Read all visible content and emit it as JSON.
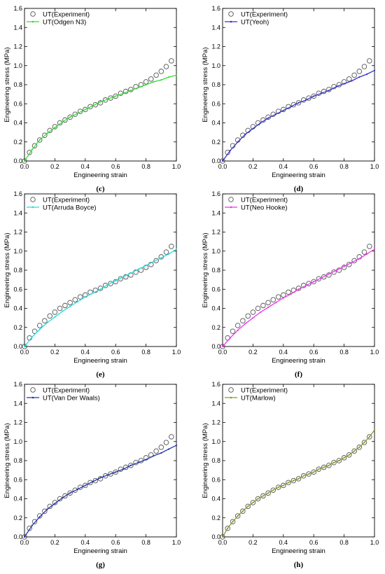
{
  "chart_data": [
    {
      "panel": "(c)",
      "type": "scatter",
      "xlabel": "Engineering strain",
      "ylabel": "Engineering stress (MPa)",
      "xlim": [
        0,
        1.0
      ],
      "ylim": [
        0,
        1.6
      ],
      "xticks": [
        "0.0",
        "0.2",
        "0.4",
        "0.6",
        "0.8",
        "1.0"
      ],
      "yticks": [
        "0.0",
        "0.2",
        "0.4",
        "0.6",
        "0.8",
        "1.0",
        "1.2",
        "1.4",
        "1.6"
      ],
      "legend_position": "top-left",
      "series": [
        {
          "name": "UT(Experiment)",
          "style": "open-circle",
          "color": "#555555",
          "x": [
            0.0,
            0.033,
            0.067,
            0.1,
            0.133,
            0.167,
            0.2,
            0.233,
            0.267,
            0.3,
            0.333,
            0.367,
            0.4,
            0.433,
            0.467,
            0.5,
            0.533,
            0.567,
            0.6,
            0.633,
            0.667,
            0.7,
            0.733,
            0.767,
            0.8,
            0.833,
            0.867,
            0.9,
            0.933,
            0.967
          ],
          "y": [
            0.0,
            0.09,
            0.16,
            0.22,
            0.27,
            0.32,
            0.36,
            0.4,
            0.43,
            0.46,
            0.49,
            0.52,
            0.54,
            0.57,
            0.59,
            0.61,
            0.64,
            0.66,
            0.68,
            0.71,
            0.73,
            0.75,
            0.78,
            0.8,
            0.83,
            0.86,
            0.9,
            0.94,
            0.99,
            1.05
          ]
        },
        {
          "name": "UT(Odgen N3)",
          "style": "line",
          "color": "#33dd33",
          "x": [
            0.0,
            0.05,
            0.1,
            0.15,
            0.2,
            0.25,
            0.3,
            0.35,
            0.4,
            0.45,
            0.5,
            0.55,
            0.6,
            0.65,
            0.7,
            0.75,
            0.8,
            0.85,
            0.9,
            0.95,
            1.0
          ],
          "y": [
            0.0,
            0.12,
            0.22,
            0.29,
            0.35,
            0.41,
            0.46,
            0.5,
            0.54,
            0.58,
            0.62,
            0.65,
            0.68,
            0.71,
            0.74,
            0.77,
            0.8,
            0.83,
            0.85,
            0.88,
            0.9
          ]
        }
      ]
    },
    {
      "panel": "(d)",
      "type": "scatter",
      "xlabel": "Engineering strain",
      "ylabel": "Engineering stress (MPa)",
      "xlim": [
        0,
        1.0
      ],
      "ylim": [
        0,
        1.6
      ],
      "xticks": [
        "0.0",
        "0.2",
        "0.4",
        "0.6",
        "0.8",
        "1.0"
      ],
      "yticks": [
        "0.0",
        "0.2",
        "0.4",
        "0.6",
        "0.8",
        "1.0",
        "1.2",
        "1.4",
        "1.6"
      ],
      "legend_position": "top-left",
      "series": [
        {
          "name": "UT(Experiment)",
          "style": "open-circle",
          "color": "#555555",
          "x": [
            0.0,
            0.033,
            0.067,
            0.1,
            0.133,
            0.167,
            0.2,
            0.233,
            0.267,
            0.3,
            0.333,
            0.367,
            0.4,
            0.433,
            0.467,
            0.5,
            0.533,
            0.567,
            0.6,
            0.633,
            0.667,
            0.7,
            0.733,
            0.767,
            0.8,
            0.833,
            0.867,
            0.9,
            0.933,
            0.967
          ],
          "y": [
            0.0,
            0.09,
            0.16,
            0.22,
            0.27,
            0.32,
            0.36,
            0.4,
            0.43,
            0.46,
            0.49,
            0.52,
            0.54,
            0.57,
            0.59,
            0.61,
            0.64,
            0.66,
            0.68,
            0.71,
            0.73,
            0.75,
            0.78,
            0.8,
            0.83,
            0.86,
            0.9,
            0.94,
            0.99,
            1.05
          ]
        },
        {
          "name": "UT(Yeoh)",
          "style": "line",
          "color": "#3333cc",
          "x": [
            0.0,
            0.05,
            0.1,
            0.15,
            0.2,
            0.25,
            0.3,
            0.35,
            0.4,
            0.45,
            0.5,
            0.55,
            0.6,
            0.65,
            0.7,
            0.75,
            0.8,
            0.85,
            0.9,
            0.95,
            1.0
          ],
          "y": [
            0.0,
            0.11,
            0.2,
            0.28,
            0.34,
            0.4,
            0.45,
            0.49,
            0.53,
            0.57,
            0.61,
            0.64,
            0.68,
            0.71,
            0.74,
            0.78,
            0.81,
            0.84,
            0.88,
            0.91,
            0.95
          ]
        }
      ]
    },
    {
      "panel": "(e)",
      "type": "scatter",
      "xlabel": "Engineering strain",
      "ylabel": "Engineering stress (MPa)",
      "xlim": [
        0,
        1.0
      ],
      "ylim": [
        0,
        1.6
      ],
      "xticks": [
        "0.0",
        "0.2",
        "0.4",
        "0.6",
        "0.8",
        "1.0"
      ],
      "yticks": [
        "0.0",
        "0.2",
        "0.4",
        "0.6",
        "0.8",
        "1.0",
        "1.2",
        "1.4",
        "1.6"
      ],
      "legend_position": "top-left",
      "series": [
        {
          "name": "UT(Experiment)",
          "style": "open-circle",
          "color": "#555555",
          "x": [
            0.0,
            0.033,
            0.067,
            0.1,
            0.133,
            0.167,
            0.2,
            0.233,
            0.267,
            0.3,
            0.333,
            0.367,
            0.4,
            0.433,
            0.467,
            0.5,
            0.533,
            0.567,
            0.6,
            0.633,
            0.667,
            0.7,
            0.733,
            0.767,
            0.8,
            0.833,
            0.867,
            0.9,
            0.933,
            0.967
          ],
          "y": [
            0.0,
            0.09,
            0.16,
            0.22,
            0.27,
            0.32,
            0.36,
            0.4,
            0.43,
            0.46,
            0.49,
            0.52,
            0.54,
            0.57,
            0.59,
            0.61,
            0.64,
            0.66,
            0.68,
            0.71,
            0.73,
            0.75,
            0.78,
            0.8,
            0.83,
            0.86,
            0.9,
            0.94,
            0.99,
            1.05
          ]
        },
        {
          "name": "UT(Arruda Boyce)",
          "style": "line",
          "color": "#22dddd",
          "x": [
            0.0,
            0.05,
            0.1,
            0.15,
            0.2,
            0.25,
            0.3,
            0.35,
            0.4,
            0.45,
            0.5,
            0.55,
            0.6,
            0.65,
            0.7,
            0.75,
            0.8,
            0.85,
            0.9,
            0.95,
            1.0
          ],
          "y": [
            0.0,
            0.1,
            0.18,
            0.25,
            0.31,
            0.37,
            0.42,
            0.47,
            0.52,
            0.56,
            0.6,
            0.65,
            0.69,
            0.73,
            0.77,
            0.81,
            0.85,
            0.89,
            0.93,
            0.97,
            1.02
          ]
        }
      ]
    },
    {
      "panel": "(f)",
      "type": "scatter",
      "xlabel": "Engineering strain",
      "ylabel": "Engineering stress (MPa)",
      "xlim": [
        0,
        1.0
      ],
      "ylim": [
        0,
        1.6
      ],
      "xticks": [
        "0.0",
        "0.2",
        "0.4",
        "0.6",
        "0.8",
        "1.0"
      ],
      "yticks": [
        "0.0",
        "0.2",
        "0.4",
        "0.6",
        "0.8",
        "1.0",
        "1.2",
        "1.4",
        "1.6"
      ],
      "legend_position": "top-left",
      "series": [
        {
          "name": "UT(Experiment)",
          "style": "open-circle",
          "color": "#555555",
          "x": [
            0.0,
            0.033,
            0.067,
            0.1,
            0.133,
            0.167,
            0.2,
            0.233,
            0.267,
            0.3,
            0.333,
            0.367,
            0.4,
            0.433,
            0.467,
            0.5,
            0.533,
            0.567,
            0.6,
            0.633,
            0.667,
            0.7,
            0.733,
            0.767,
            0.8,
            0.833,
            0.867,
            0.9,
            0.933,
            0.967
          ],
          "y": [
            0.0,
            0.09,
            0.16,
            0.22,
            0.27,
            0.32,
            0.36,
            0.4,
            0.43,
            0.46,
            0.49,
            0.52,
            0.54,
            0.57,
            0.59,
            0.61,
            0.64,
            0.66,
            0.68,
            0.71,
            0.73,
            0.75,
            0.78,
            0.8,
            0.83,
            0.86,
            0.9,
            0.94,
            0.99,
            1.05
          ]
        },
        {
          "name": "UT(Neo Hooke)",
          "style": "line",
          "color": "#ee33ee",
          "x": [
            0.0,
            0.05,
            0.1,
            0.15,
            0.2,
            0.25,
            0.3,
            0.35,
            0.4,
            0.45,
            0.5,
            0.55,
            0.6,
            0.65,
            0.7,
            0.75,
            0.8,
            0.85,
            0.9,
            0.95,
            1.0
          ],
          "y": [
            0.0,
            0.09,
            0.17,
            0.24,
            0.3,
            0.36,
            0.41,
            0.46,
            0.51,
            0.55,
            0.6,
            0.64,
            0.68,
            0.72,
            0.76,
            0.8,
            0.84,
            0.88,
            0.92,
            0.97,
            1.02
          ]
        }
      ]
    },
    {
      "panel": "(g)",
      "type": "scatter",
      "xlabel": "Engineering strain",
      "ylabel": "Engineering stress (MPa)",
      "xlim": [
        0,
        1.0
      ],
      "ylim": [
        0,
        1.6
      ],
      "xticks": [
        "0.0",
        "0.2",
        "0.4",
        "0.6",
        "0.8",
        "1.0"
      ],
      "yticks": [
        "0.0",
        "0.2",
        "0.4",
        "0.6",
        "0.8",
        "1.0",
        "1.2",
        "1.4",
        "1.6"
      ],
      "legend_position": "top-left",
      "series": [
        {
          "name": "UT(Experiment)",
          "style": "open-circle",
          "color": "#555555",
          "x": [
            0.0,
            0.033,
            0.067,
            0.1,
            0.133,
            0.167,
            0.2,
            0.233,
            0.267,
            0.3,
            0.333,
            0.367,
            0.4,
            0.433,
            0.467,
            0.5,
            0.533,
            0.567,
            0.6,
            0.633,
            0.667,
            0.7,
            0.733,
            0.767,
            0.8,
            0.833,
            0.867,
            0.9,
            0.933,
            0.967
          ],
          "y": [
            0.0,
            0.09,
            0.16,
            0.22,
            0.27,
            0.32,
            0.36,
            0.4,
            0.43,
            0.46,
            0.49,
            0.52,
            0.54,
            0.57,
            0.59,
            0.61,
            0.64,
            0.66,
            0.68,
            0.71,
            0.73,
            0.75,
            0.78,
            0.8,
            0.83,
            0.86,
            0.9,
            0.94,
            0.99,
            1.05
          ]
        },
        {
          "name": "UT(Van Der Waals)",
          "style": "line",
          "color": "#2233aa",
          "x": [
            0.0,
            0.05,
            0.1,
            0.15,
            0.2,
            0.25,
            0.3,
            0.35,
            0.4,
            0.45,
            0.5,
            0.55,
            0.6,
            0.65,
            0.7,
            0.75,
            0.8,
            0.85,
            0.9,
            0.95,
            1.0
          ],
          "y": [
            0.0,
            0.12,
            0.21,
            0.29,
            0.35,
            0.41,
            0.46,
            0.5,
            0.54,
            0.58,
            0.62,
            0.65,
            0.68,
            0.71,
            0.75,
            0.78,
            0.81,
            0.85,
            0.88,
            0.92,
            0.96
          ]
        }
      ]
    },
    {
      "panel": "(h)",
      "type": "scatter",
      "xlabel": "Engineering strain",
      "ylabel": "Engineering stress (MPa)",
      "xlim": [
        0,
        1.0
      ],
      "ylim": [
        0,
        1.6
      ],
      "xticks": [
        "0.0",
        "0.2",
        "0.4",
        "0.6",
        "0.8",
        "1.0"
      ],
      "yticks": [
        "0.0",
        "0.2",
        "0.4",
        "0.6",
        "0.8",
        "1.0",
        "1.2",
        "1.4",
        "1.6"
      ],
      "legend_position": "top-left",
      "series": [
        {
          "name": "UT(Experiment)",
          "style": "open-circle",
          "color": "#555555",
          "x": [
            0.0,
            0.033,
            0.067,
            0.1,
            0.133,
            0.167,
            0.2,
            0.233,
            0.267,
            0.3,
            0.333,
            0.367,
            0.4,
            0.433,
            0.467,
            0.5,
            0.533,
            0.567,
            0.6,
            0.633,
            0.667,
            0.7,
            0.733,
            0.767,
            0.8,
            0.833,
            0.867,
            0.9,
            0.933,
            0.967
          ],
          "y": [
            0.0,
            0.09,
            0.16,
            0.22,
            0.27,
            0.32,
            0.36,
            0.4,
            0.43,
            0.46,
            0.49,
            0.52,
            0.54,
            0.57,
            0.59,
            0.61,
            0.64,
            0.66,
            0.68,
            0.71,
            0.73,
            0.75,
            0.78,
            0.8,
            0.83,
            0.86,
            0.9,
            0.94,
            0.99,
            1.05
          ]
        },
        {
          "name": "UT(Marlow)",
          "style": "line",
          "color": "#8a9a2a",
          "x": [
            0.0,
            0.033,
            0.067,
            0.1,
            0.133,
            0.167,
            0.2,
            0.233,
            0.267,
            0.3,
            0.333,
            0.367,
            0.4,
            0.433,
            0.467,
            0.5,
            0.533,
            0.567,
            0.6,
            0.633,
            0.667,
            0.7,
            0.733,
            0.767,
            0.8,
            0.833,
            0.867,
            0.9,
            0.933,
            0.967,
            1.0
          ],
          "y": [
            0.0,
            0.09,
            0.16,
            0.22,
            0.27,
            0.32,
            0.36,
            0.4,
            0.43,
            0.46,
            0.49,
            0.52,
            0.54,
            0.57,
            0.59,
            0.61,
            0.64,
            0.66,
            0.68,
            0.71,
            0.73,
            0.75,
            0.78,
            0.8,
            0.83,
            0.86,
            0.9,
            0.94,
            0.99,
            1.05,
            1.12
          ]
        }
      ]
    }
  ]
}
